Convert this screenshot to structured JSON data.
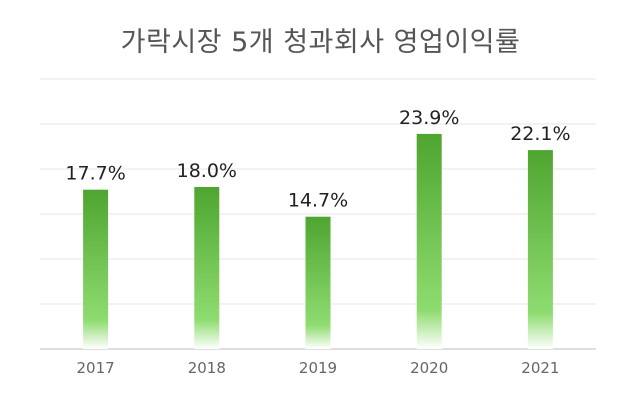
{
  "chart_data": {
    "type": "bar",
    "title": "가락시장 5개 청과회사 영업이익률",
    "categories": [
      "2017",
      "2018",
      "2019",
      "2020",
      "2021"
    ],
    "values": [
      17.7,
      18.0,
      14.7,
      23.9,
      22.1
    ],
    "data_labels": [
      "17.7%",
      "18.0%",
      "14.7%",
      "23.9%",
      "22.1%"
    ],
    "xlabel": "",
    "ylabel": "",
    "ylim": [
      0,
      30
    ],
    "grid": true,
    "gridline_step": 5,
    "y_tick_labels_shown": false,
    "colors": {
      "bar_top": "#4ea52f",
      "bar_mid": "#8edc70",
      "bar_bottom": "#ffffff",
      "grid": "#e6e6e6",
      "axis": "#bdbdbd"
    }
  }
}
